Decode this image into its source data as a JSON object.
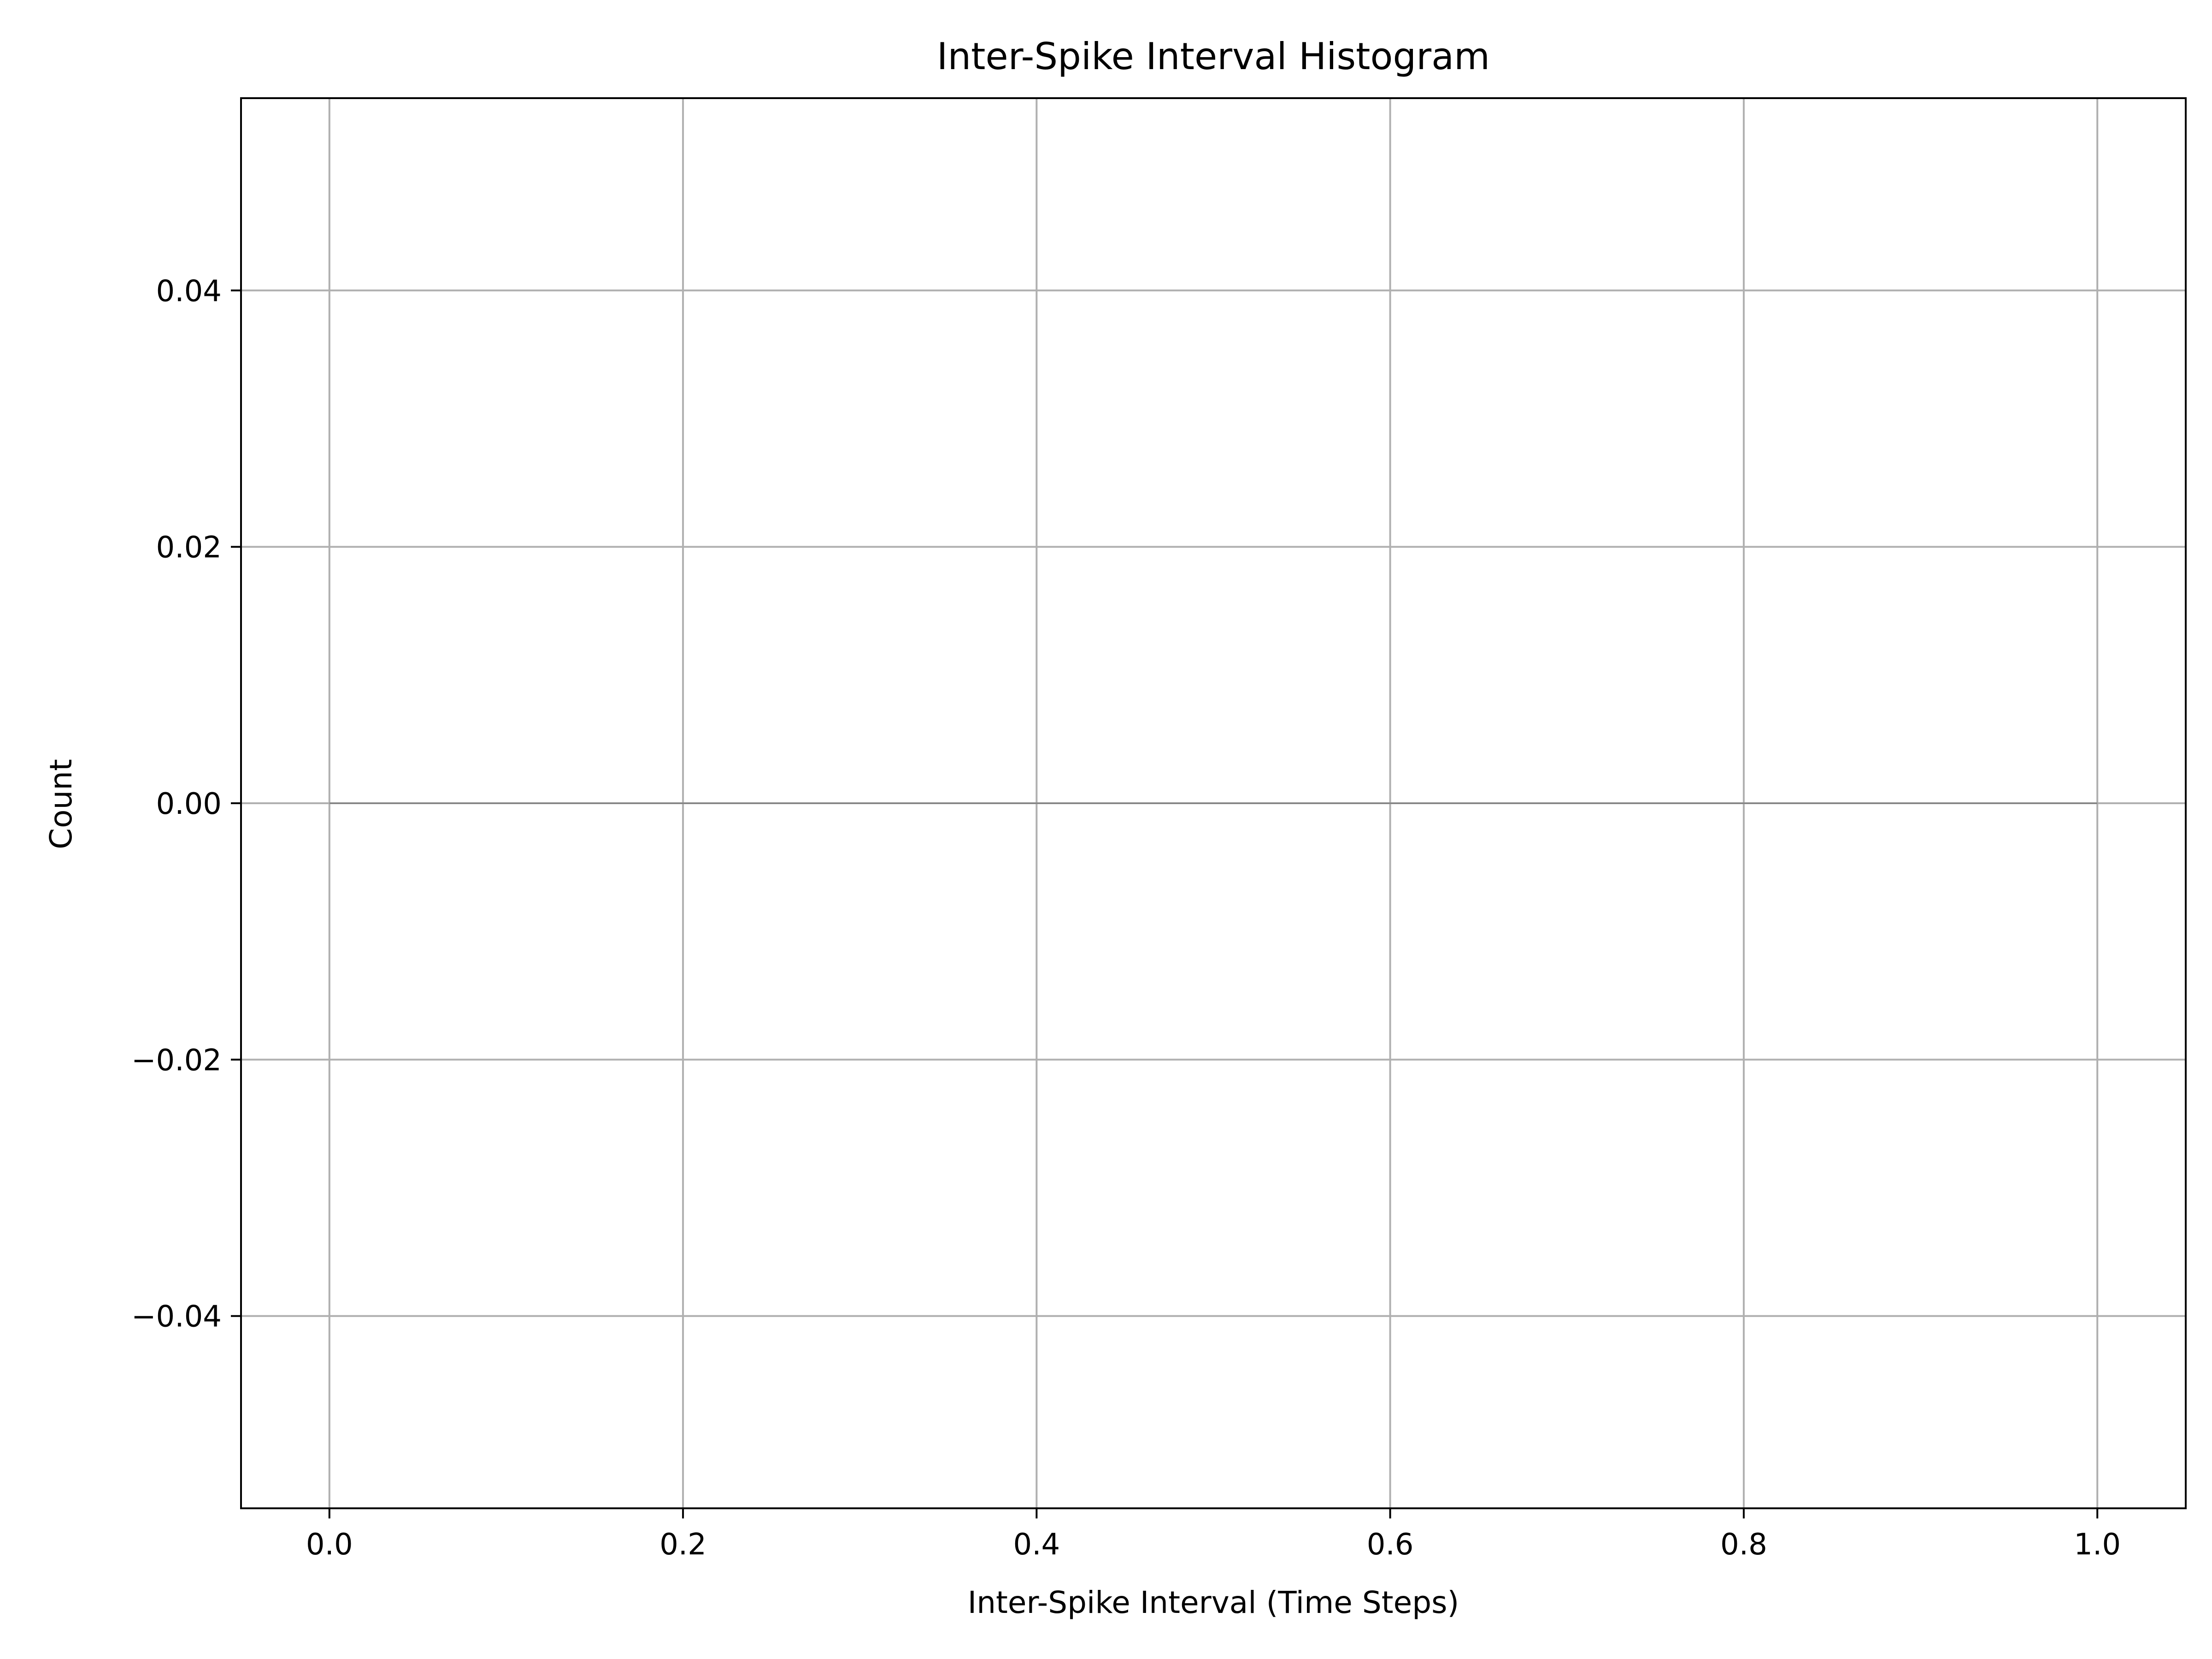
{
  "chart_data": {
    "type": "bar",
    "title": "Inter-Spike Interval Histogram",
    "xlabel": "Inter-Spike Interval (Time Steps)",
    "ylabel": "Count",
    "xlim": [
      -0.05,
      1.05
    ],
    "ylim": [
      -0.055,
      0.055
    ],
    "x_ticks": [
      0.0,
      0.2,
      0.4,
      0.6,
      0.8,
      1.0
    ],
    "x_tick_labels": [
      "0.0",
      "0.2",
      "0.4",
      "0.6",
      "0.8",
      "1.0"
    ],
    "y_ticks": [
      0.04,
      0.02,
      0.0,
      -0.02,
      -0.04
    ],
    "y_tick_labels": [
      "0.04",
      "0.02",
      "0.00",
      "−0.02",
      "−0.04"
    ],
    "bins": [
      {
        "start": 0.0,
        "end": 1.0,
        "count": 0
      }
    ],
    "grid": true,
    "colors": {
      "grid": "#b0b0b0",
      "axes": "#000000",
      "bar": "#808080"
    }
  }
}
